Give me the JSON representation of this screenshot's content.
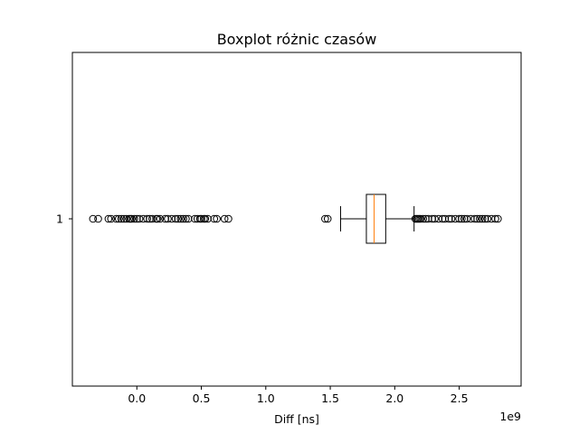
{
  "chart_data": {
    "type": "boxplot",
    "orientation": "horizontal",
    "title": "Boxplot różnic czasów",
    "xlabel": "Diff [ns]",
    "ylabel": "",
    "x_offset_label": "1e9",
    "x_scale_factor": 1000000000,
    "xlim": [
      -0.5,
      2.98
    ],
    "xticks": [
      0.0,
      0.5,
      1.0,
      1.5,
      2.0,
      2.5
    ],
    "xtick_labels": [
      "0.0",
      "0.5",
      "1.0",
      "1.5",
      "2.0",
      "2.5"
    ],
    "ytick_labels": [
      "1"
    ],
    "grid": false,
    "box": {
      "category": "1",
      "whisker_low": 1.58,
      "q1": 1.78,
      "median": 1.84,
      "q3": 1.93,
      "whisker_high": 2.15
    },
    "outliers": [
      -0.34,
      -0.3,
      -0.22,
      -0.2,
      -0.16,
      -0.14,
      -0.12,
      -0.1,
      -0.08,
      -0.06,
      -0.05,
      -0.04,
      -0.02,
      0.0,
      0.02,
      0.05,
      0.08,
      0.1,
      0.12,
      0.15,
      0.16,
      0.18,
      0.22,
      0.24,
      0.27,
      0.3,
      0.32,
      0.34,
      0.36,
      0.38,
      0.4,
      0.45,
      0.47,
      0.49,
      0.5,
      0.52,
      0.53,
      0.55,
      0.6,
      0.62,
      0.68,
      0.71,
      1.46,
      1.48,
      2.16,
      2.17,
      2.18,
      2.19,
      2.2,
      2.22,
      2.24,
      2.26,
      2.29,
      2.31,
      2.34,
      2.37,
      2.39,
      2.42,
      2.44,
      2.47,
      2.5,
      2.52,
      2.54,
      2.56,
      2.59,
      2.62,
      2.64,
      2.66,
      2.68,
      2.7,
      2.72,
      2.75,
      2.78,
      2.8
    ],
    "colors": {
      "box": "#000000",
      "median": "#ff7f0e",
      "outlier": "#000000",
      "background": "#ffffff"
    }
  }
}
